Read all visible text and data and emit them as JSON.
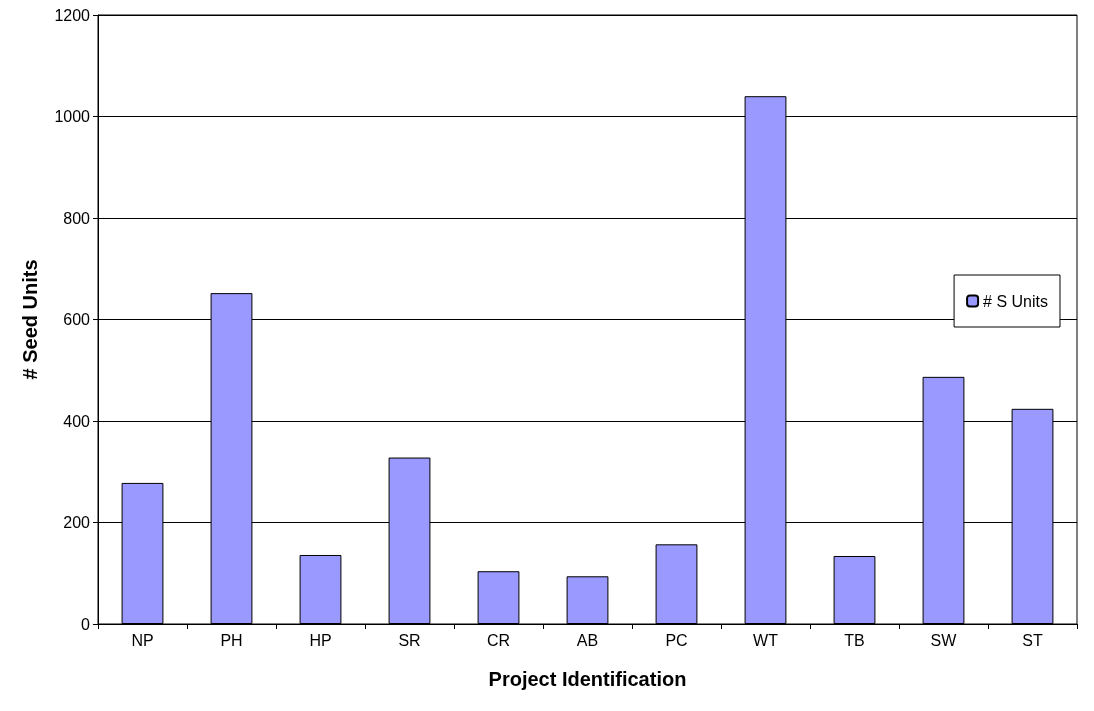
{
  "chart_data": {
    "type": "bar",
    "xlabel": "Project Identification",
    "ylabel": "# Seed Units",
    "categories": [
      "NP",
      "PH",
      "HP",
      "SR",
      "CR",
      "AB",
      "PC",
      "WT",
      "TB",
      "SW",
      "ST"
    ],
    "series": [
      {
        "name": "# S Units",
        "color": "#9999ff",
        "values": [
          278,
          652,
          136,
          328,
          104,
          94,
          157,
          1040,
          134,
          487,
          424
        ]
      }
    ],
    "ylim": [
      0,
      1200
    ],
    "yticks": [
      0,
      200,
      400,
      600,
      800,
      1000,
      1200
    ],
    "grid": "y",
    "legend": "right"
  }
}
